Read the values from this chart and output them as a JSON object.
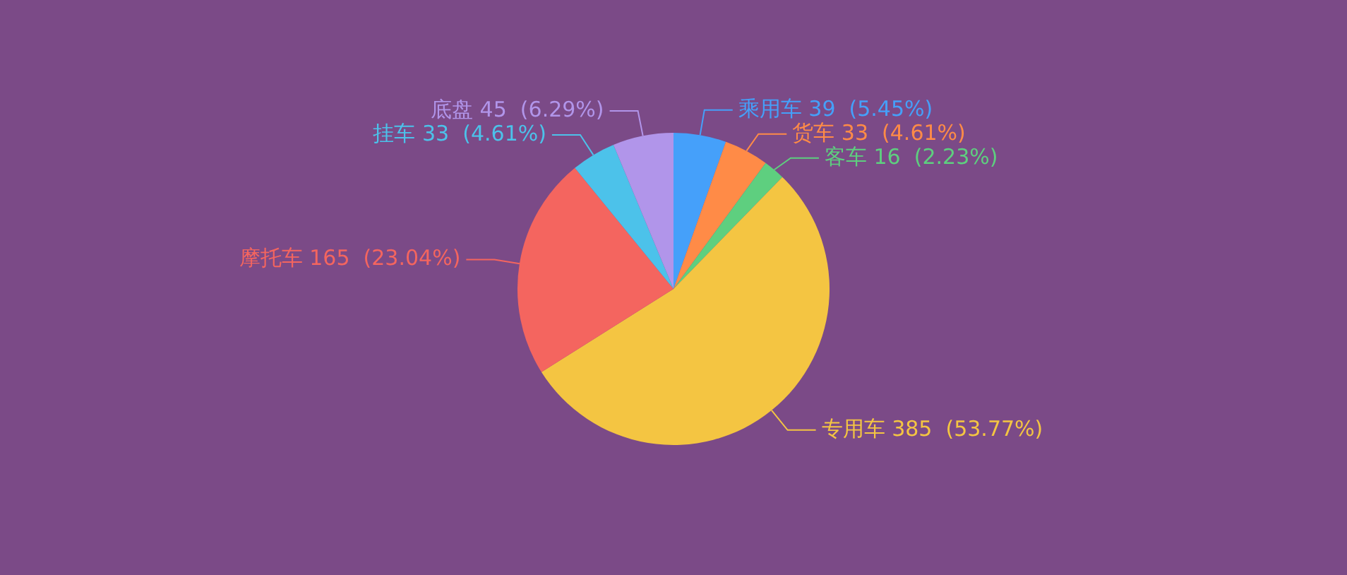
{
  "chart_data": {
    "type": "pie",
    "categories": [
      "乘用车",
      "货车",
      "客车",
      "专用车",
      "摩托车",
      "挂车",
      "底盘"
    ],
    "values": [
      39,
      33,
      16,
      385,
      165,
      33,
      45
    ],
    "colors": [
      "#45a0fa",
      "#ff8b47",
      "#5ecf7f",
      "#f4c542",
      "#f4655f",
      "#4cc2ea",
      "#b195ea"
    ],
    "value_labels": [
      "39  (5.45%)",
      "33  (4.61%)",
      "16  (2.23%)",
      "385  (53.77%)",
      "165  (23.04%)",
      "33  (4.61%)",
      "45  (6.29%)"
    ],
    "legend": false
  }
}
